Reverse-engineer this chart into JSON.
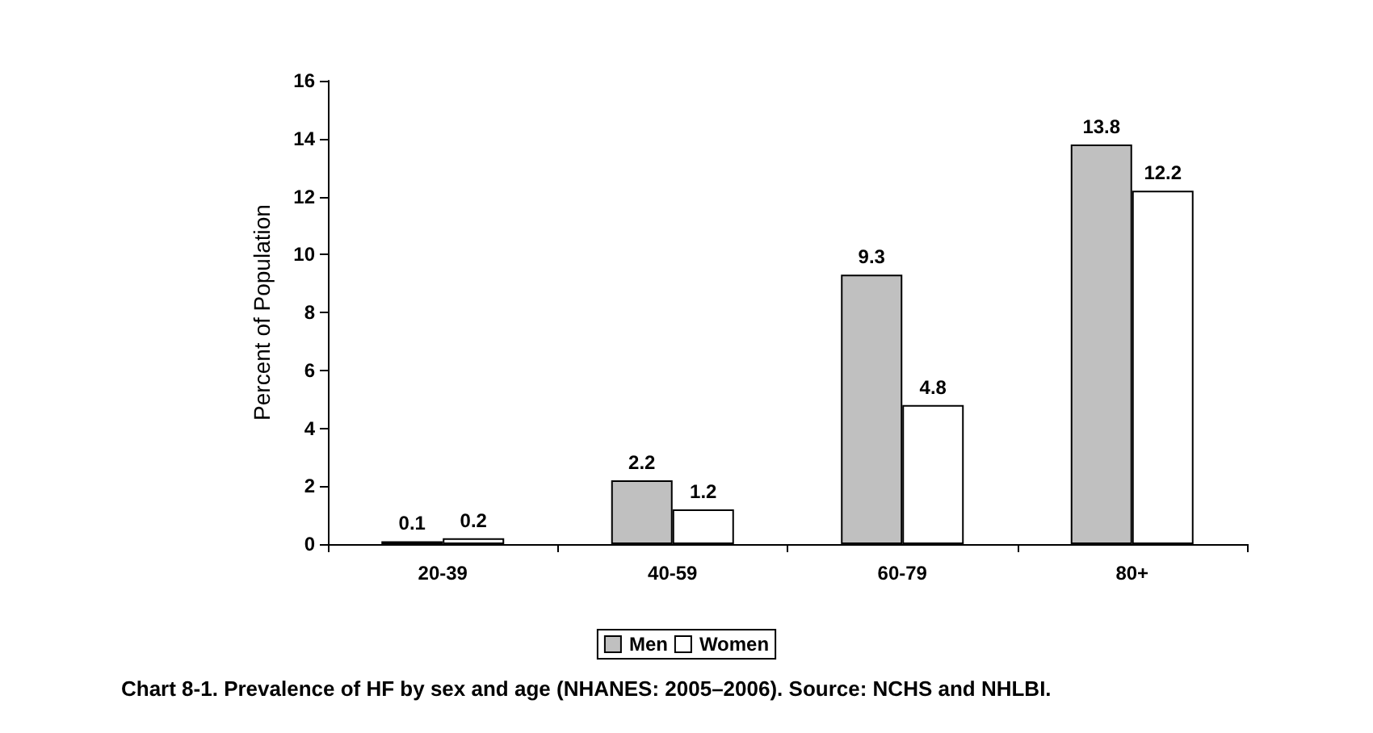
{
  "chart_data": {
    "type": "bar",
    "title": "Chart 8-1. Prevalence of HF by sex and age (NHANES: 2005–2006). Source: NCHS and NHLBI.",
    "ylabel": "Percent of Population",
    "categories": [
      "20-39",
      "40-59",
      "60-79",
      "80+"
    ],
    "series": [
      {
        "name": "Men",
        "color": "#c0c0c0",
        "values": [
          0.1,
          2.2,
          9.3,
          13.8
        ]
      },
      {
        "name": "Women",
        "color": "#ffffff",
        "values": [
          0.2,
          1.2,
          4.8,
          12.2
        ]
      }
    ],
    "ylim": [
      0,
      16
    ],
    "yticks": [
      0,
      2,
      4,
      6,
      8,
      10,
      12,
      14,
      16
    ],
    "grid": false,
    "legend": "bottom",
    "data_labels": true
  }
}
